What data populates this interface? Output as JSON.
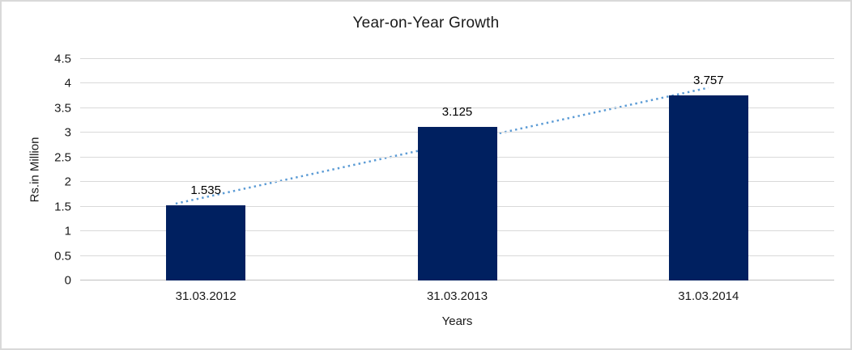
{
  "window": {
    "background": "#ffffff",
    "border_color": "#d9d9d9"
  },
  "chart_data": {
    "type": "bar",
    "title": "Year-on-Year Growth",
    "xlabel": "Years",
    "ylabel": "Rs.in Million",
    "categories": [
      "31.03.2012",
      "31.03.2013",
      "31.03.2014"
    ],
    "values": [
      1.535,
      3.125,
      3.757
    ],
    "data_labels": [
      "1.535",
      "3.125",
      "3.757"
    ],
    "ylim": [
      0,
      4.5
    ],
    "ytick_step": 0.5,
    "yticks": [
      "0",
      "0.5",
      "1",
      "1.5",
      "2",
      "2.5",
      "3",
      "3.5",
      "4",
      "4.5"
    ],
    "grid": true,
    "legend": "none",
    "bar_color": "#002060",
    "gridline_color": "#d9d9d9",
    "axis_line_color": "#bfbfbf",
    "text_color": "#1a1a1a",
    "trendline": {
      "type": "linear",
      "style": "dotted",
      "color": "#5b9bd5"
    }
  }
}
